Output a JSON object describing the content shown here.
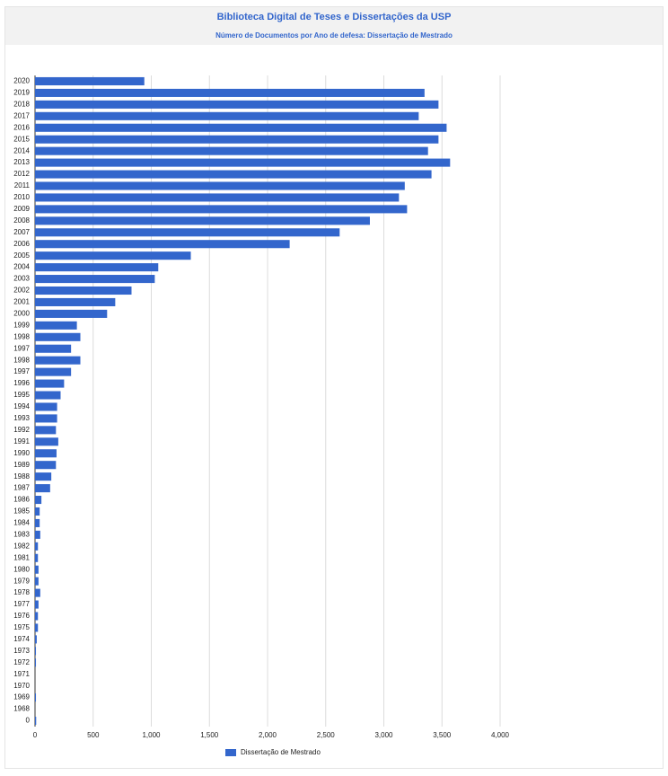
{
  "chart_data": {
    "type": "hbar",
    "title": "Biblioteca Digital de Teses e Dissertações da USP",
    "subtitle": "Número de Documentos por Ano de defesa: Dissertação de Mestrado",
    "categories": [
      "2020",
      "2019",
      "2018",
      "2017",
      "2016",
      "2015",
      "2014",
      "2013",
      "2012",
      "2011",
      "2010",
      "2009",
      "2008",
      "2007",
      "2006",
      "2005",
      "2004",
      "2003",
      "2002",
      "2001",
      "2000",
      "1999",
      "1998",
      "1997",
      "1998",
      "1997",
      "1996",
      "1995",
      "1994",
      "1993",
      "1992",
      "1991",
      "1990",
      "1989",
      "1988",
      "1987",
      "1986",
      "1985",
      "1984",
      "1983",
      "1982",
      "1981",
      "1980",
      "1979",
      "1978",
      "1977",
      "1976",
      "1975",
      "1974",
      "1973",
      "1972",
      "1971",
      "1970",
      "1969",
      "1968",
      "0"
    ],
    "series": [
      {
        "name": "Dissertação de Mestrado",
        "color": "#3366cc",
        "values": [
          940,
          3350,
          3470,
          3300,
          3540,
          3470,
          3380,
          3570,
          3410,
          3180,
          3130,
          3200,
          2880,
          2620,
          2190,
          1340,
          1060,
          1030,
          830,
          690,
          620,
          360,
          390,
          310,
          390,
          310,
          250,
          220,
          190,
          190,
          180,
          200,
          185,
          180,
          140,
          130,
          55,
          40,
          40,
          45,
          25,
          25,
          30,
          30,
          45,
          30,
          25,
          25,
          15,
          8,
          8,
          0,
          0,
          8,
          0,
          10
        ]
      }
    ],
    "xlim": [
      0,
      4000
    ],
    "xticks": [
      0,
      500,
      {
        "value": 1000,
        "label": "1,000"
      },
      {
        "value": 1500,
        "label": "1,500"
      },
      {
        "value": 2000,
        "label": "2,000"
      },
      {
        "value": 2500,
        "label": "2,500"
      },
      {
        "value": 3000,
        "label": "3,000"
      },
      {
        "value": 3500,
        "label": "3,500"
      },
      {
        "value": 4000,
        "label": "4,000"
      }
    ],
    "grid": true,
    "legend": "bottom"
  }
}
